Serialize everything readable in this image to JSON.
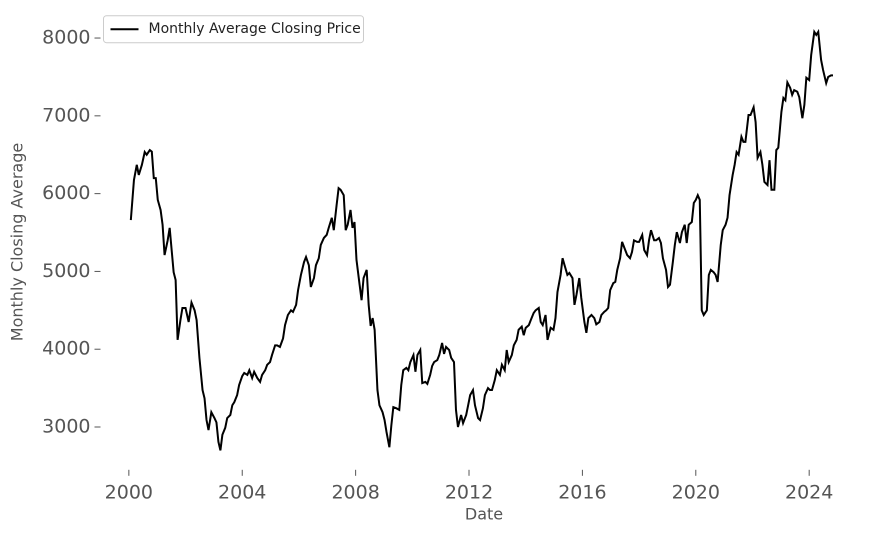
{
  "chart_data": {
    "type": "line",
    "xlabel": "Date",
    "ylabel": "Monthly Closing Average",
    "x": [
      2000.07,
      2000.18,
      2000.28,
      2000.35,
      2000.46,
      2000.56,
      2000.63,
      2000.74,
      2000.81,
      2000.88,
      2000.95,
      2001.02,
      2001.12,
      2001.19,
      2001.26,
      2001.37,
      2001.44,
      2001.51,
      2001.58,
      2001.65,
      2001.72,
      2001.82,
      2001.89,
      2002.0,
      2002.11,
      2002.21,
      2002.32,
      2002.39,
      2002.49,
      2002.6,
      2002.67,
      2002.74,
      2002.81,
      2002.91,
      2003.02,
      2003.09,
      2003.16,
      2003.23,
      2003.3,
      2003.4,
      2003.47,
      2003.58,
      2003.65,
      2003.72,
      2003.82,
      2003.89,
      2004.0,
      2004.07,
      2004.18,
      2004.25,
      2004.35,
      2004.42,
      2004.53,
      2004.63,
      2004.7,
      2004.81,
      2004.88,
      2004.98,
      2005.05,
      2005.16,
      2005.23,
      2005.33,
      2005.44,
      2005.51,
      2005.61,
      2005.72,
      2005.79,
      2005.9,
      2005.97,
      2006.07,
      2006.18,
      2006.25,
      2006.35,
      2006.42,
      2006.53,
      2006.6,
      2006.7,
      2006.77,
      2006.88,
      2006.98,
      2007.05,
      2007.16,
      2007.23,
      2007.33,
      2007.4,
      2007.47,
      2007.58,
      2007.65,
      2007.72,
      2007.82,
      2007.89,
      2007.96,
      2008.03,
      2008.14,
      2008.21,
      2008.28,
      2008.39,
      2008.46,
      2008.53,
      2008.6,
      2008.67,
      2008.77,
      2008.84,
      2008.95,
      2009.02,
      2009.09,
      2009.19,
      2009.26,
      2009.33,
      2009.44,
      2009.54,
      2009.61,
      2009.68,
      2009.79,
      2009.86,
      2009.93,
      2010.04,
      2010.11,
      2010.18,
      2010.28,
      2010.35,
      2010.46,
      2010.53,
      2010.63,
      2010.7,
      2010.77,
      2010.88,
      2010.95,
      2011.05,
      2011.12,
      2011.19,
      2011.3,
      2011.37,
      2011.47,
      2011.54,
      2011.61,
      2011.72,
      2011.79,
      2011.9,
      2011.97,
      2012.04,
      2012.14,
      2012.21,
      2012.32,
      2012.39,
      2012.49,
      2012.56,
      2012.67,
      2012.74,
      2012.81,
      2012.91,
      2012.98,
      2013.09,
      2013.16,
      2013.26,
      2013.33,
      2013.4,
      2013.51,
      2013.58,
      2013.68,
      2013.75,
      2013.86,
      2013.93,
      2014.0,
      2014.11,
      2014.18,
      2014.28,
      2014.35,
      2014.46,
      2014.53,
      2014.6,
      2014.7,
      2014.77,
      2014.88,
      2014.98,
      2015.05,
      2015.12,
      2015.23,
      2015.3,
      2015.37,
      2015.47,
      2015.54,
      2015.65,
      2015.72,
      2015.79,
      2015.89,
      2015.96,
      2016.07,
      2016.14,
      2016.21,
      2016.32,
      2016.42,
      2016.49,
      2016.6,
      2016.67,
      2016.77,
      2016.84,
      2016.91,
      2016.98,
      2017.09,
      2017.16,
      2017.23,
      2017.33,
      2017.4,
      2017.51,
      2017.58,
      2017.68,
      2017.75,
      2017.82,
      2017.93,
      2018.0,
      2018.11,
      2018.18,
      2018.28,
      2018.35,
      2018.42,
      2018.53,
      2018.6,
      2018.7,
      2018.77,
      2018.84,
      2018.95,
      2019.02,
      2019.09,
      2019.19,
      2019.26,
      2019.33,
      2019.44,
      2019.51,
      2019.61,
      2019.68,
      2019.75,
      2019.86,
      2019.93,
      2020.0,
      2020.07,
      2020.14,
      2020.21,
      2020.28,
      2020.39,
      2020.46,
      2020.53,
      2020.63,
      2020.7,
      2020.77,
      2020.88,
      2020.95,
      2021.05,
      2021.12,
      2021.19,
      2021.3,
      2021.37,
      2021.44,
      2021.51,
      2021.61,
      2021.68,
      2021.75,
      2021.86,
      2021.93,
      2022.04,
      2022.11,
      2022.18,
      2022.28,
      2022.35,
      2022.42,
      2022.53,
      2022.6,
      2022.67,
      2022.77,
      2022.84,
      2022.91,
      2023.02,
      2023.09,
      2023.16,
      2023.23,
      2023.33,
      2023.4,
      2023.47,
      2023.58,
      2023.65,
      2023.76,
      2023.83,
      2023.9,
      2024.0,
      2024.07,
      2024.18,
      2024.25,
      2024.32,
      2024.42,
      2024.49,
      2024.6,
      2024.67,
      2024.77,
      2024.84
    ],
    "series": [
      {
        "name": "Monthly Average Closing Price",
        "color": "#000000",
        "values": [
          5660,
          6175,
          6370,
          6240,
          6370,
          6535,
          6500,
          6560,
          6540,
          6200,
          6200,
          5920,
          5790,
          5600,
          5210,
          5400,
          5560,
          5275,
          4990,
          4890,
          4120,
          4375,
          4530,
          4530,
          4350,
          4600,
          4500,
          4375,
          3890,
          3475,
          3370,
          3090,
          2960,
          3190,
          3115,
          3060,
          2810,
          2700,
          2900,
          2990,
          3115,
          3155,
          3280,
          3320,
          3410,
          3540,
          3655,
          3695,
          3670,
          3730,
          3630,
          3710,
          3630,
          3580,
          3670,
          3730,
          3800,
          3835,
          3925,
          4050,
          4050,
          4030,
          4140,
          4310,
          4440,
          4500,
          4480,
          4570,
          4760,
          4955,
          5120,
          5185,
          5080,
          4800,
          4915,
          5080,
          5170,
          5340,
          5430,
          5470,
          5560,
          5690,
          5530,
          5855,
          6070,
          6050,
          5980,
          5530,
          5600,
          5790,
          5560,
          5635,
          5150,
          4830,
          4630,
          4915,
          5020,
          4570,
          4300,
          4400,
          4250,
          3475,
          3280,
          3190,
          3090,
          2935,
          2740,
          3020,
          3255,
          3240,
          3220,
          3540,
          3730,
          3760,
          3730,
          3835,
          3925,
          3710,
          3925,
          3990,
          3565,
          3580,
          3555,
          3670,
          3785,
          3835,
          3860,
          3925,
          4080,
          3940,
          4030,
          3990,
          3890,
          3835,
          3220,
          3000,
          3155,
          3050,
          3155,
          3280,
          3410,
          3475,
          3280,
          3115,
          3090,
          3240,
          3410,
          3500,
          3475,
          3475,
          3605,
          3730,
          3670,
          3800,
          3730,
          3990,
          3835,
          3925,
          4050,
          4120,
          4250,
          4290,
          4180,
          4275,
          4310,
          4375,
          4465,
          4500,
          4530,
          4350,
          4310,
          4440,
          4120,
          4275,
          4250,
          4400,
          4735,
          4955,
          5170,
          5080,
          4955,
          4980,
          4915,
          4570,
          4700,
          4915,
          4660,
          4350,
          4210,
          4400,
          4440,
          4400,
          4320,
          4350,
          4440,
          4480,
          4500,
          4530,
          4760,
          4850,
          4865,
          5020,
          5170,
          5380,
          5275,
          5210,
          5170,
          5250,
          5400,
          5380,
          5380,
          5470,
          5275,
          5210,
          5400,
          5530,
          5400,
          5400,
          5430,
          5365,
          5170,
          5020,
          4800,
          4830,
          5120,
          5340,
          5505,
          5365,
          5505,
          5600,
          5365,
          5600,
          5635,
          5880,
          5920,
          5980,
          5920,
          4500,
          4440,
          4500,
          4955,
          5020,
          4990,
          4955,
          4865,
          5340,
          5530,
          5600,
          5690,
          5980,
          6240,
          6370,
          6535,
          6500,
          6730,
          6665,
          6665,
          7010,
          7010,
          7110,
          6920,
          6460,
          6535,
          6370,
          6150,
          6110,
          6430,
          6050,
          6050,
          6560,
          6590,
          7050,
          7230,
          7200,
          7430,
          7360,
          7270,
          7330,
          7310,
          7240,
          6970,
          7140,
          7490,
          7460,
          7780,
          8080,
          8040,
          8080,
          7720,
          7590,
          7420,
          7500,
          7520,
          7520
        ]
      }
    ],
    "xlim": [
      1999.0,
      2025.2
    ],
    "ylim": [
      2450,
      8300
    ],
    "xticks": [
      2000,
      2004,
      2008,
      2012,
      2016,
      2020,
      2024
    ],
    "yticks": [
      3000,
      4000,
      5000,
      6000,
      7000,
      8000
    ],
    "legend": "upper left",
    "grid": false
  }
}
